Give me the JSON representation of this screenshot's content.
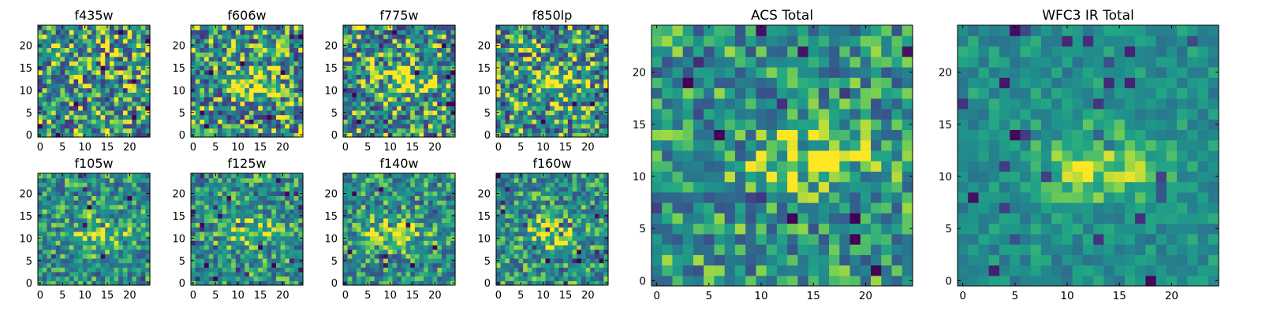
{
  "chart_data": [
    {
      "type": "heatmap",
      "title": "f435w",
      "xticks": [
        0,
        5,
        10,
        15,
        20
      ],
      "yticks": [
        0,
        5,
        10,
        15,
        20
      ],
      "xlim": [
        -0.5,
        24.5
      ],
      "ylim": [
        -0.5,
        24.5
      ],
      "grid": 25,
      "colormap": "viridis",
      "bright_spot": null,
      "noise": "high"
    },
    {
      "type": "heatmap",
      "title": "f606w",
      "xticks": [
        0,
        5,
        10,
        15,
        20
      ],
      "yticks": [
        0,
        5,
        10,
        15,
        20
      ],
      "xlim": [
        -0.5,
        24.5
      ],
      "ylim": [
        -0.5,
        24.5
      ],
      "grid": 25,
      "colormap": "viridis",
      "bright_spot": {
        "x": 14,
        "y": 12
      },
      "noise": "high"
    },
    {
      "type": "heatmap",
      "title": "f775w",
      "xticks": [
        0,
        5,
        10,
        15,
        20
      ],
      "yticks": [
        0,
        5,
        10,
        15,
        20
      ],
      "xlim": [
        -0.5,
        24.5
      ],
      "ylim": [
        -0.5,
        24.5
      ],
      "grid": 25,
      "colormap": "viridis",
      "bright_spot": {
        "x": 13,
        "y": 12
      },
      "noise": "high"
    },
    {
      "type": "heatmap",
      "title": "f850lp",
      "xticks": [
        0,
        5,
        10,
        15,
        20
      ],
      "yticks": [
        0,
        5,
        10,
        15,
        20
      ],
      "xlim": [
        -0.5,
        24.5
      ],
      "ylim": [
        -0.5,
        24.5
      ],
      "grid": 25,
      "colormap": "viridis",
      "bright_spot": {
        "x": 13,
        "y": 11
      },
      "noise": "high"
    },
    {
      "type": "heatmap",
      "title": "f105w",
      "xticks": [
        0,
        5,
        10,
        15,
        20
      ],
      "yticks": [
        0,
        5,
        10,
        15,
        20
      ],
      "xlim": [
        -0.5,
        24.5
      ],
      "ylim": [
        -0.5,
        24.5
      ],
      "grid": 25,
      "colormap": "viridis",
      "bright_spot": {
        "x": 13,
        "y": 11
      },
      "noise": "medium"
    },
    {
      "type": "heatmap",
      "title": "f125w",
      "xticks": [
        0,
        5,
        10,
        15,
        20
      ],
      "yticks": [
        0,
        5,
        10,
        15,
        20
      ],
      "xlim": [
        -0.5,
        24.5
      ],
      "ylim": [
        -0.5,
        24.5
      ],
      "grid": 25,
      "colormap": "viridis",
      "bright_spot": {
        "x": 12,
        "y": 12
      },
      "noise": "medium"
    },
    {
      "type": "heatmap",
      "title": "f140w",
      "xticks": [
        0,
        5,
        10,
        15,
        20
      ],
      "yticks": [
        0,
        5,
        10,
        15,
        20
      ],
      "xlim": [
        -0.5,
        24.5
      ],
      "ylim": [
        -0.5,
        24.5
      ],
      "grid": 25,
      "colormap": "viridis",
      "bright_spot": {
        "x": 11,
        "y": 11
      },
      "noise": "medium"
    },
    {
      "type": "heatmap",
      "title": "f160w",
      "xticks": [
        0,
        5,
        10,
        15,
        20
      ],
      "yticks": [
        0,
        5,
        10,
        15,
        20
      ],
      "xlim": [
        -0.5,
        24.5
      ],
      "ylim": [
        -0.5,
        24.5
      ],
      "grid": 25,
      "colormap": "viridis",
      "bright_spot": {
        "x": 12,
        "y": 11
      },
      "noise": "medium"
    },
    {
      "type": "heatmap",
      "title": "ACS Total",
      "xticks": [
        0,
        5,
        10,
        15,
        20
      ],
      "yticks": [
        0,
        5,
        10,
        15,
        20
      ],
      "xlim": [
        -0.5,
        24.5
      ],
      "ylim": [
        -0.5,
        24.5
      ],
      "grid": 25,
      "colormap": "viridis",
      "bright_spot": {
        "x": 15,
        "y": 12
      },
      "noise": "medium"
    },
    {
      "type": "heatmap",
      "title": "WFC3 IR Total",
      "xticks": [
        0,
        5,
        10,
        15,
        20
      ],
      "yticks": [
        0,
        5,
        10,
        15,
        20
      ],
      "xlim": [
        -0.5,
        24.5
      ],
      "ylim": [
        -0.5,
        24.5
      ],
      "grid": 25,
      "colormap": "viridis",
      "bright_spot": {
        "x": 13,
        "y": 11
      },
      "noise": "low"
    }
  ]
}
